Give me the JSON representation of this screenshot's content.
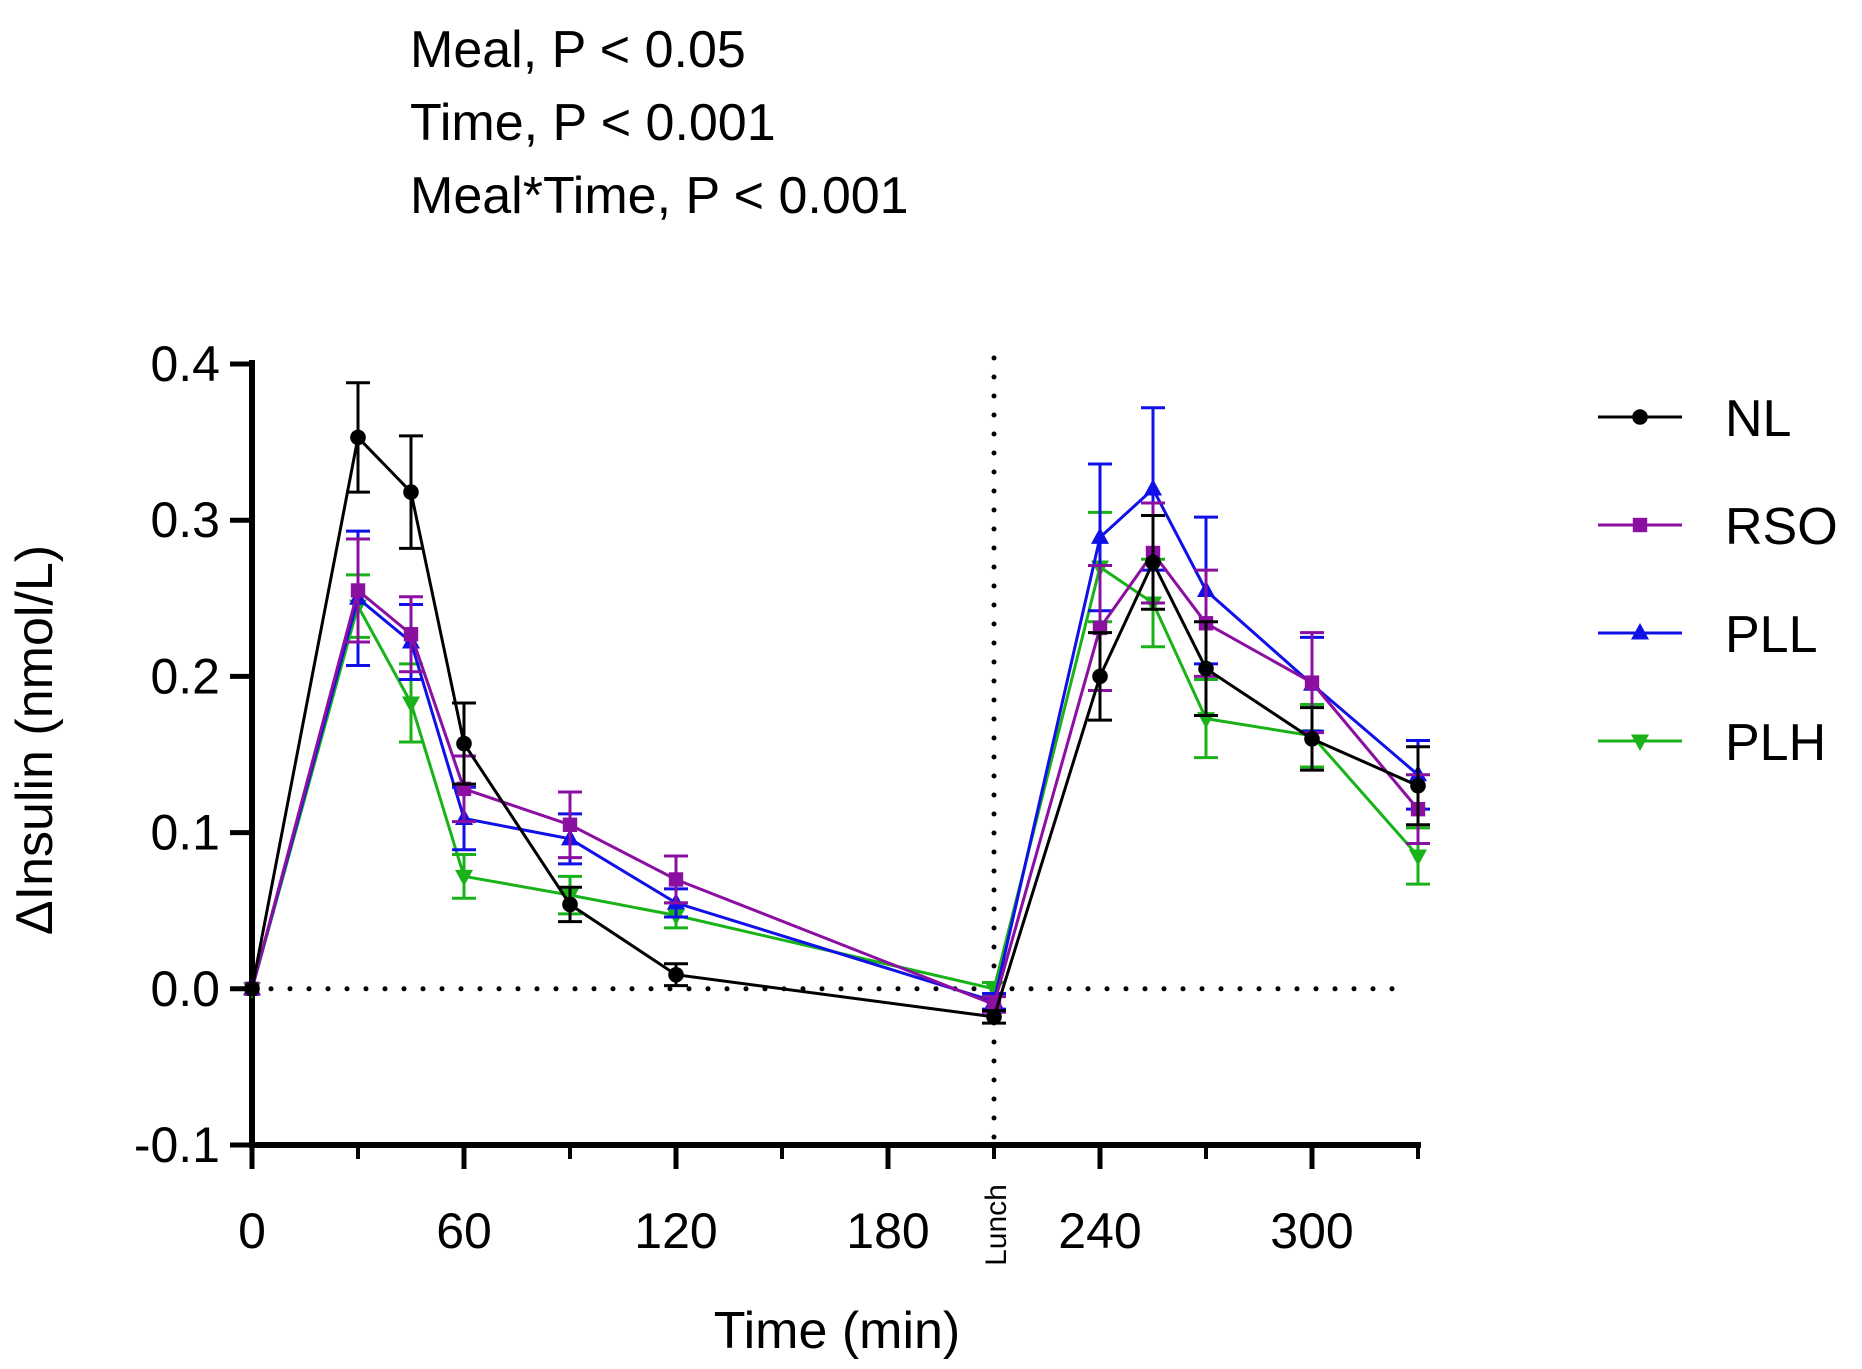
{
  "chart_data": {
    "type": "line",
    "annotations": [
      "Meal, P < 0.05",
      "Time, P < 0.001",
      "Meal*Time, P < 0.001"
    ],
    "xlabel": "Time (min)",
    "ylabel": "ΔInsulin (nmol/L)",
    "xlim": [
      0,
      330
    ],
    "ylim": [
      -0.1,
      0.4
    ],
    "x_ticks": [
      0,
      60,
      120,
      180,
      240,
      300
    ],
    "x_tick_labels": [
      "0",
      "60",
      "120",
      "180",
      "240",
      "300"
    ],
    "y_ticks": [
      -0.1,
      0.0,
      0.1,
      0.2,
      0.3,
      0.4
    ],
    "y_tick_labels": [
      "-0.1",
      "0.0",
      "0.1",
      "0.2",
      "0.3",
      "0.4"
    ],
    "minor_x_ticks": [
      30,
      90,
      150,
      210,
      270,
      330
    ],
    "reference_lines": {
      "horizontal_y": 0,
      "vertical_x": 210,
      "vertical_label": "Lunch"
    },
    "legend_position": "right",
    "x": [
      0,
      30,
      45,
      60,
      90,
      120,
      210,
      240,
      255,
      270,
      300,
      330
    ],
    "series": [
      {
        "name": "NL",
        "color": "#000000",
        "marker": "circle",
        "values": [
          0,
          0.353,
          0.318,
          0.157,
          0.054,
          0.009,
          -0.018,
          0.2,
          0.273,
          0.205,
          0.16,
          0.13
        ],
        "errors": [
          0,
          0.035,
          0.036,
          0.026,
          0.011,
          0.007,
          0.004,
          0.028,
          0.03,
          0.03,
          0.02,
          0.025
        ]
      },
      {
        "name": "RSO",
        "color": "#8b0fa0",
        "marker": "square",
        "values": [
          0,
          0.255,
          0.227,
          0.128,
          0.105,
          0.07,
          -0.01,
          0.231,
          0.279,
          0.234,
          0.196,
          0.115
        ],
        "errors": [
          0,
          0.033,
          0.024,
          0.021,
          0.021,
          0.015,
          0.005,
          0.04,
          0.032,
          0.034,
          0.032,
          0.022
        ]
      },
      {
        "name": "PLL",
        "color": "#1010e8",
        "marker": "triangle-up",
        "values": [
          0,
          0.25,
          0.222,
          0.109,
          0.096,
          0.055,
          -0.008,
          0.289,
          0.32,
          0.255,
          0.195,
          0.137
        ],
        "errors": [
          0,
          0.043,
          0.024,
          0.02,
          0.016,
          0.009,
          0.005,
          0.047,
          0.052,
          0.047,
          0.03,
          0.022
        ]
      },
      {
        "name": "PLH",
        "color": "#19b319",
        "marker": "triangle-down",
        "values": [
          0,
          0.245,
          0.183,
          0.072,
          0.06,
          0.047,
          0.0,
          0.27,
          0.247,
          0.173,
          0.162,
          0.085
        ],
        "errors": [
          0,
          0.02,
          0.025,
          0.014,
          0.012,
          0.008,
          0.004,
          0.035,
          0.028,
          0.025,
          0.02,
          0.018
        ]
      }
    ]
  }
}
